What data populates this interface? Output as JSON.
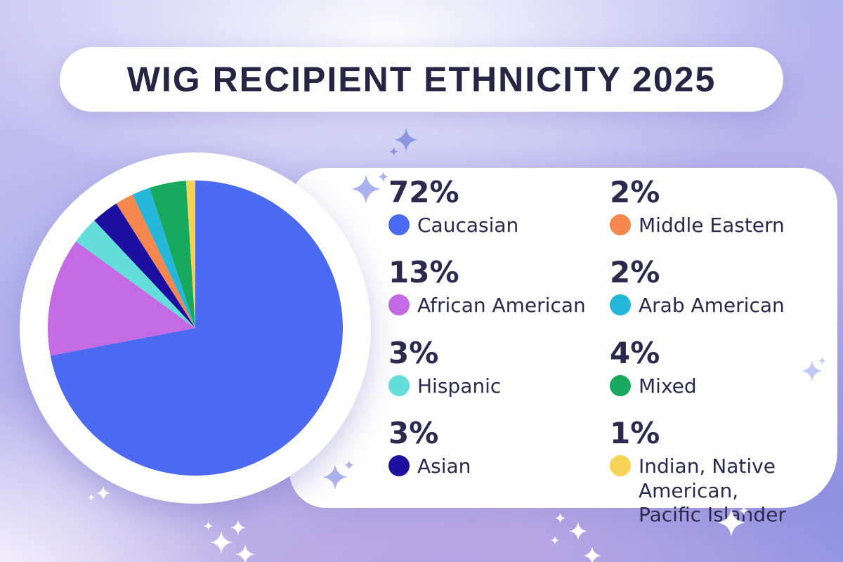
{
  "title": "WIG RECIPIENT ETHNICITY 2025",
  "chart_data": {
    "type": "pie",
    "title": "WIG RECIPIENT ETHNICITY 2025",
    "start_angle_deg": 0,
    "start_position": "12-o-clock",
    "direction": "clockwise",
    "legend_position": "right",
    "total_percent": 100,
    "slices": [
      {
        "label": "Caucasian",
        "value": 72,
        "percent_label": "72%",
        "color": "#4b69f1"
      },
      {
        "label": "African American",
        "value": 13,
        "percent_label": "13%",
        "color": "#c46ae3"
      },
      {
        "label": "Hispanic",
        "value": 3,
        "percent_label": "3%",
        "color": "#64dedb"
      },
      {
        "label": "Asian",
        "value": 3,
        "percent_label": "3%",
        "color": "#1c10a0"
      },
      {
        "label": "Middle Eastern",
        "value": 2,
        "percent_label": "2%",
        "color": "#f6874e"
      },
      {
        "label": "Arab American",
        "value": 2,
        "percent_label": "2%",
        "color": "#25b6da"
      },
      {
        "label": "Mixed",
        "value": 4,
        "percent_label": "4%",
        "color": "#16a95d"
      },
      {
        "label": "Indian, Native American, Pacific Islander",
        "value": 1,
        "percent_label": "1%",
        "color": "#f7d355"
      }
    ]
  },
  "colors": {
    "title_text": "#262544",
    "legend_text": "#2b2a4e",
    "card_background": "#ffffff",
    "background_periwinkle": "#b3b3ee",
    "background_lilac": "#c2aee5",
    "background_deep_periwinkle": "#8b90e2",
    "sparkle_on_card": "#a9b1ef",
    "sparkle_on_background": "#8f96e4",
    "sparkle_white": "#ffffff"
  }
}
